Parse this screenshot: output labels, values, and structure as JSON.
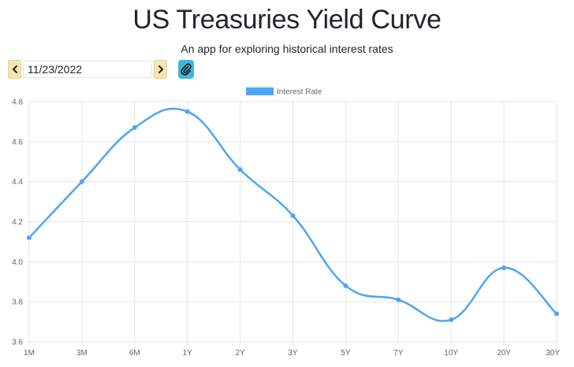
{
  "header": {
    "title": "US Treasuries Yield Curve",
    "subtitle": "An app for exploring historical interest rates"
  },
  "date_picker": {
    "value": "11/23/2022",
    "prev_icon": "chevron-left-icon",
    "next_icon": "chevron-right-icon"
  },
  "toolbar": {
    "attach_icon": "paperclip-icon"
  },
  "colors": {
    "line": "#4da6f5",
    "nav_button": "#f5e7b2",
    "attach_button": "#3fb8dc"
  },
  "chart_data": {
    "type": "line",
    "categories": [
      "1M",
      "3M",
      "6M",
      "1Y",
      "2Y",
      "3Y",
      "5Y",
      "7Y",
      "10Y",
      "20Y",
      "30Y"
    ],
    "series": [
      {
        "name": "Interest Rate",
        "values": [
          4.12,
          4.4,
          4.67,
          4.75,
          4.46,
          4.23,
          3.88,
          3.81,
          3.71,
          3.97,
          3.74
        ]
      }
    ],
    "ylim": [
      3.6,
      4.8
    ],
    "yticks": [
      "3.6",
      "3.8",
      "4.0",
      "4.2",
      "4.4",
      "4.6",
      "4.8"
    ],
    "legend_position": "top",
    "grid": true,
    "smooth": true
  }
}
